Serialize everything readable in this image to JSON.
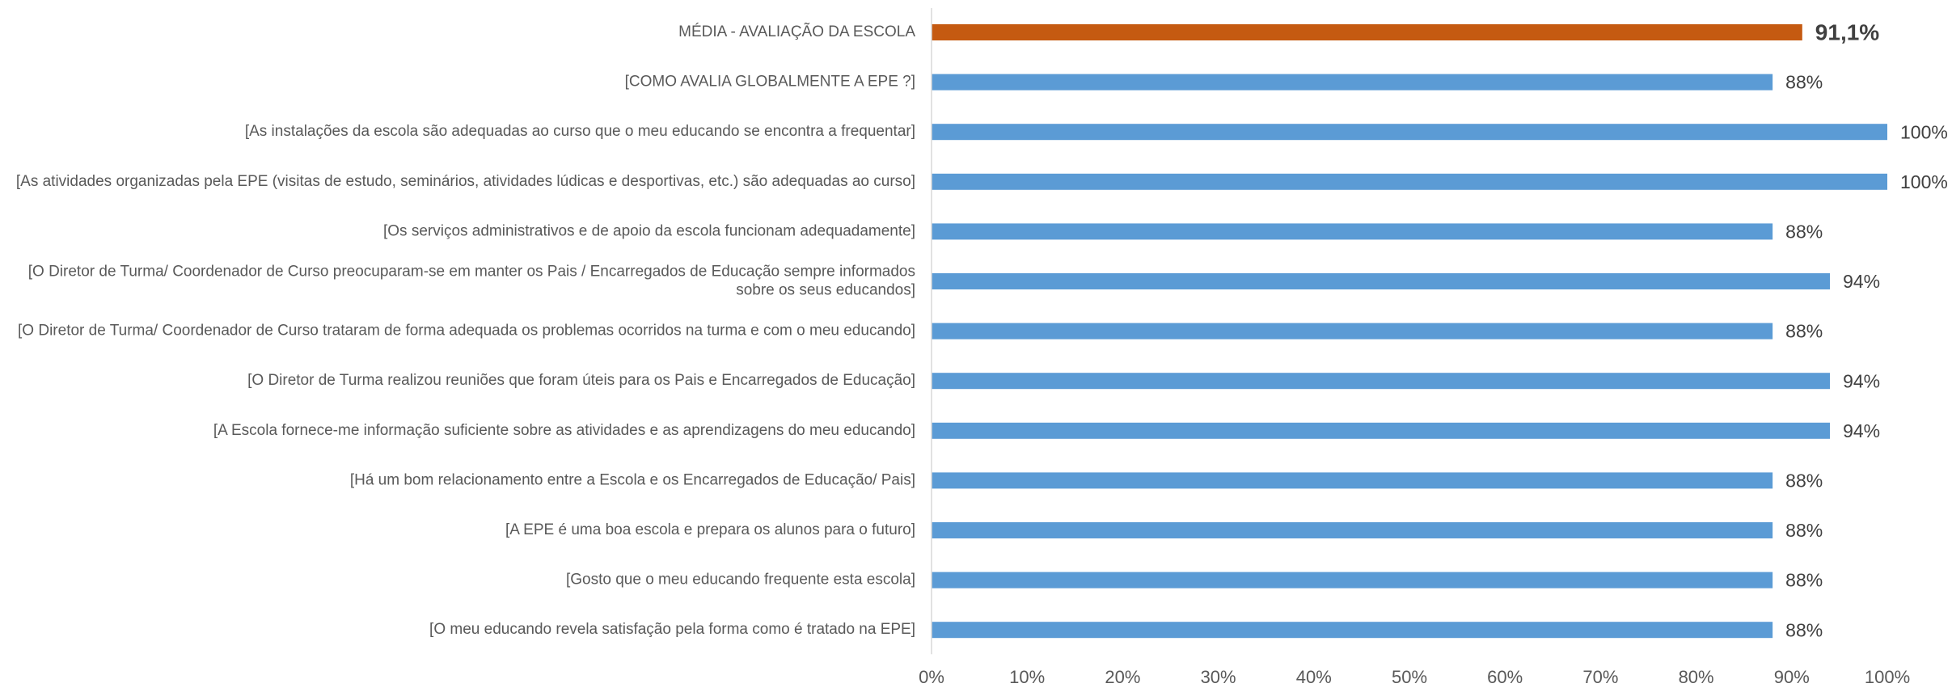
{
  "chart_data": {
    "type": "bar",
    "orientation": "horizontal",
    "categories": [
      "MÉDIA - AVALIAÇÃO DA ESCOLA",
      "[COMO AVALIA GLOBALMENTE A EPE ?]",
      "[As instalações da escola são adequadas ao curso que o meu educando se encontra a frequentar]",
      "[As atividades organizadas pela EPE (visitas de estudo, seminários, atividades lúdicas e desportivas, etc.) são adequadas ao curso]",
      "[Os serviços administrativos e de apoio  da escola funcionam adequadamente]",
      "[O Diretor de Turma/ Coordenador de Curso preocuparam-se em manter os Pais / Encarregados de Educação sempre informados sobre os seus educandos]",
      "[O Diretor de Turma/ Coordenador de Curso trataram de forma adequada os problemas ocorridos na turma e com o meu educando]",
      "[O Diretor de Turma realizou reuniões que foram úteis para os Pais e Encarregados de Educação]",
      "[A Escola fornece-me informação suficiente sobre as atividades e as aprendizagens do meu educando]",
      "[Há um bom relacionamento entre a Escola e os Encarregados de Educação/ Pais]",
      "[A EPE é uma boa escola e prepara os alunos para o futuro]",
      "[Gosto que o meu educando frequente esta escola]",
      "[O meu educando revela satisfação pela forma como é tratado na EPE]"
    ],
    "values": [
      91.1,
      88,
      100,
      100,
      88,
      94,
      88,
      94,
      94,
      88,
      88,
      88,
      88
    ],
    "value_labels": [
      "91,1%",
      "88%",
      "100%",
      "100%",
      "88%",
      "94%",
      "88%",
      "94%",
      "94%",
      "88%",
      "88%",
      "88%",
      "88%"
    ],
    "colors": [
      "#c55a11",
      "#5b9bd5",
      "#5b9bd5",
      "#5b9bd5",
      "#5b9bd5",
      "#5b9bd5",
      "#5b9bd5",
      "#5b9bd5",
      "#5b9bd5",
      "#5b9bd5",
      "#5b9bd5",
      "#5b9bd5",
      "#5b9bd5"
    ],
    "xlim": [
      0,
      100
    ],
    "xticks": [
      {
        "value": 0,
        "label": "0%"
      },
      {
        "value": 10,
        "label": "10%"
      },
      {
        "value": 20,
        "label": "20%"
      },
      {
        "value": 30,
        "label": "30%"
      },
      {
        "value": 40,
        "label": "40%"
      },
      {
        "value": 50,
        "label": "50%"
      },
      {
        "value": 60,
        "label": "60%"
      },
      {
        "value": 70,
        "label": "70%"
      },
      {
        "value": 80,
        "label": "80%"
      },
      {
        "value": 90,
        "label": "90%"
      },
      {
        "value": 100,
        "label": "100%"
      }
    ],
    "grid": false
  }
}
